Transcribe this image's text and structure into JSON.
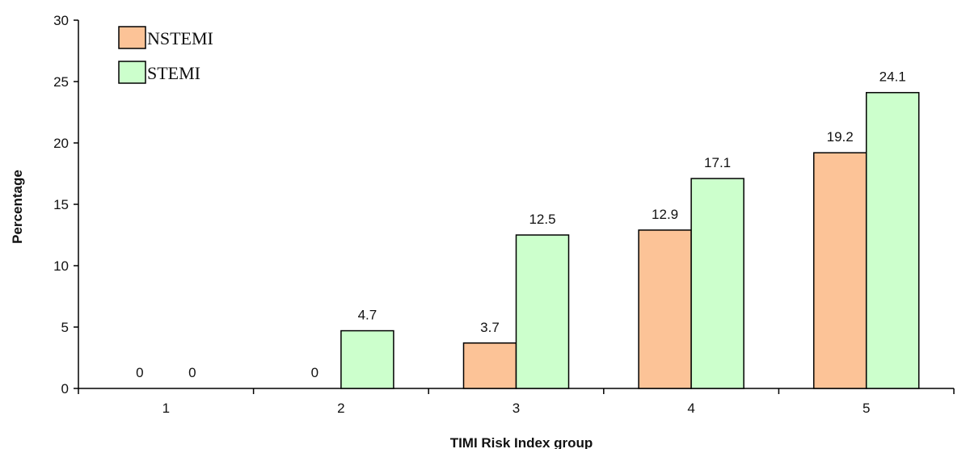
{
  "chart_data": {
    "type": "bar",
    "title": "",
    "xlabel": "TIMI Risk Index group",
    "ylabel": "Percentage",
    "categories": [
      "1",
      "2",
      "3",
      "4",
      "5"
    ],
    "ylim": [
      0,
      30
    ],
    "yticks": [
      "0",
      "5",
      "10",
      "15",
      "20",
      "25",
      "30"
    ],
    "grid": false,
    "legend_position": "top-left",
    "series": [
      {
        "name": "NSTEMI",
        "color": "#FCC397",
        "values": [
          0,
          0,
          3.7,
          12.9,
          19.2
        ],
        "labels": [
          "0",
          "0",
          "3.7",
          "12.9",
          "19.2"
        ]
      },
      {
        "name": "STEMI",
        "color": "#CCFFCC",
        "values": [
          0,
          4.7,
          12.5,
          17.1,
          24.1
        ],
        "labels": [
          "0",
          "4.7",
          "12.5",
          "17.1",
          "24.1"
        ]
      }
    ]
  }
}
